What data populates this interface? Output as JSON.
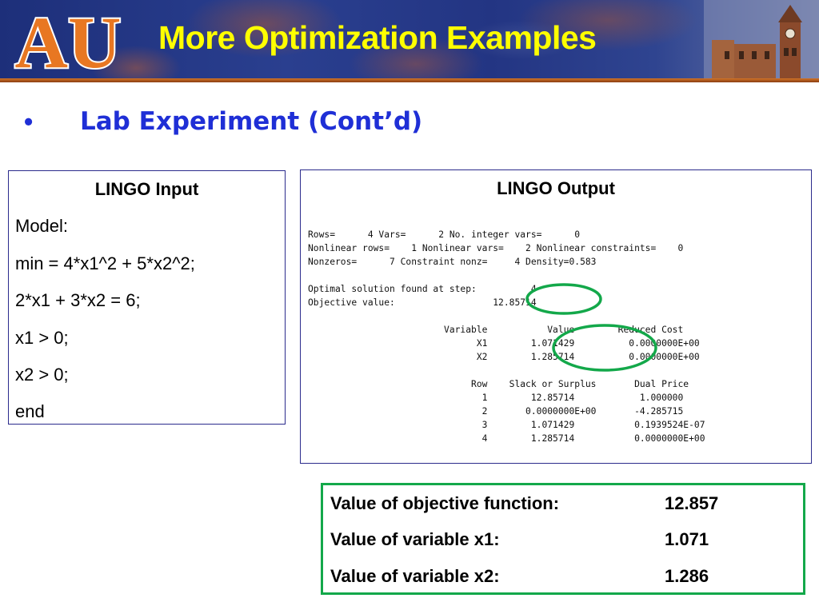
{
  "header": {
    "title": "More Optimization Examples",
    "logo_text": "AU"
  },
  "subtitle": {
    "bullet": "•",
    "text": "Lab Experiment (Cont’d)"
  },
  "input_panel": {
    "title": "LINGO Input",
    "lines": [
      "Model:",
      "min = 4*x1^2 + 5*x2^2;",
      "2*x1 + 3*x2 = 6;",
      "x1 > 0;",
      "x2 > 0;",
      "end"
    ]
  },
  "output_panel": {
    "title": "LINGO Output",
    "text": "Rows=      4 Vars=      2 No. integer vars=      0\nNonlinear rows=    1 Nonlinear vars=    2 Nonlinear constraints=    0\nNonzeros=      7 Constraint nonz=     4 Density=0.583\n\nOptimal solution found at step:          4\nObjective value:                  12.85714\n\n                         Variable           Value        Reduced Cost\n                               X1        1.071429          0.0000000E+00\n                               X2        1.285714          0.0000000E+00\n\n                              Row    Slack or Surplus       Dual Price\n                                1        12.85714            1.000000\n                                2       0.0000000E+00       -4.285715\n                                3        1.071429           0.1939524E-07\n                                4        1.285714           0.0000000E+00"
  },
  "summary": {
    "rows": [
      {
        "label": "Value of objective function:",
        "value": "12.857"
      },
      {
        "label": "Value of variable x1:",
        "value": "1.071"
      },
      {
        "label": "Value of variable x2:",
        "value": "1.286"
      }
    ]
  },
  "colors": {
    "title": "#ffff00",
    "subtitle": "#1f2fd6",
    "highlight_circle": "#13a84a",
    "summary_border": "#13a84a",
    "panel_border": "#2b2b8c"
  }
}
